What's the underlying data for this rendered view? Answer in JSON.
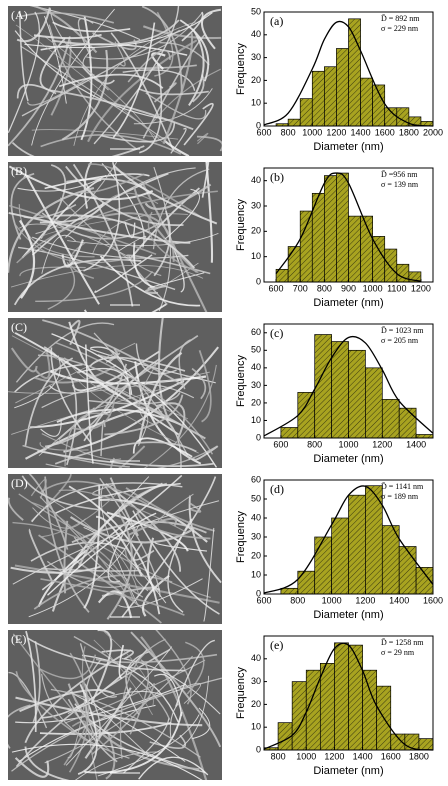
{
  "chart_data": [
    {
      "type": "histogram",
      "image_label": "(A)",
      "label": "(a)",
      "xlabel": "Diameter (nm)",
      "ylabel": "Frequency",
      "color": "#a8a320",
      "annotations": [
        "D̄ = 892 nm",
        "σ = 229 nm"
      ],
      "bins": [
        700,
        800,
        900,
        1000,
        1100,
        1200,
        1300,
        1400,
        1500,
        1600,
        1700,
        1800,
        1900,
        2000
      ],
      "counts": [
        1,
        3,
        12,
        24,
        26,
        34,
        47,
        21,
        18,
        8,
        8,
        4,
        2
      ],
      "curve": {
        "x": [
          600,
          800,
          1000,
          1100,
          1200,
          1300,
          1400,
          1600,
          1800,
          2000
        ],
        "y": [
          0.5,
          5.6,
          25,
          38,
          45.5,
          43.5,
          33,
          9.7,
          1.2,
          0
        ]
      },
      "xlim": [
        600,
        2000
      ],
      "xticks": [
        600,
        800,
        1000,
        1200,
        1400,
        1600,
        1800,
        2000
      ],
      "ylim": [
        0,
        50
      ],
      "yticks": [
        0,
        10,
        20,
        30,
        40,
        50
      ]
    },
    {
      "type": "histogram",
      "image_label": "(B)",
      "label": "(b)",
      "xlabel": "Diameter (nm)",
      "ylabel": "Frequency",
      "color": "#a8a320",
      "annotations": [
        "D̄ =956 nm",
        "σ = 139 nm"
      ],
      "bins": [
        600,
        650,
        700,
        750,
        800,
        850,
        900,
        950,
        1000,
        1050,
        1100,
        1150,
        1200
      ],
      "counts": [
        5,
        14,
        28,
        35,
        42,
        43,
        26,
        26,
        18,
        13,
        7,
        4
      ],
      "curve": {
        "x": [
          600,
          700,
          800,
          850,
          900,
          1000,
          1100,
          1200
        ],
        "y": [
          3.3,
          17,
          39,
          43,
          39,
          17,
          3.3,
          0.3
        ]
      },
      "xlim": [
        550,
        1250
      ],
      "xticks": [
        600,
        700,
        800,
        900,
        1000,
        1100,
        1200
      ],
      "ylim": [
        0,
        45
      ],
      "yticks": [
        0,
        10,
        20,
        30,
        40
      ]
    },
    {
      "type": "histogram",
      "image_label": "(C)",
      "label": "(c)",
      "xlabel": "Diameter (nm)",
      "ylabel": "Frequency",
      "color": "#a8a320",
      "annotations": [
        "D̄ = 1023 nm",
        "σ = 205 nm"
      ],
      "bins": [
        600,
        700,
        800,
        900,
        1000,
        1100,
        1200,
        1300,
        1400,
        1500
      ],
      "counts": [
        6,
        26,
        59,
        55,
        50,
        40,
        22,
        17,
        2
      ],
      "curve": {
        "x": [
          500,
          700,
          800,
          900,
          1000,
          1100,
          1200,
          1300,
          1500
        ],
        "y": [
          1.2,
          12.8,
          27.9,
          45.8,
          57.3,
          54.2,
          38.9,
          21,
          2.7
        ]
      },
      "xlim": [
        500,
        1500
      ],
      "xticks": [
        600,
        800,
        1000,
        1200,
        1400
      ],
      "ylim": [
        0,
        65
      ],
      "yticks": [
        0,
        10,
        20,
        30,
        40,
        50,
        60
      ]
    },
    {
      "type": "histogram",
      "image_label": "(D)",
      "label": "(d)",
      "xlabel": "Diameter (nm)",
      "ylabel": "Frequency",
      "color": "#a8a320",
      "annotations": [
        "D̄ = 1141 nm",
        "σ = 189 nm"
      ],
      "bins": [
        700,
        800,
        900,
        1000,
        1100,
        1200,
        1300,
        1400,
        1500,
        1600
      ],
      "counts": [
        3,
        12,
        30,
        40,
        52,
        57,
        36,
        25,
        14
      ],
      "curve": {
        "x": [
          600,
          800,
          1000,
          1100,
          1200,
          1300,
          1400,
          1600
        ],
        "y": [
          0.5,
          7.7,
          36.4,
          52,
          56.7,
          46.7,
          29,
          5
        ]
      },
      "xlim": [
        600,
        1600
      ],
      "xticks": [
        600,
        800,
        1000,
        1200,
        1400,
        1600
      ],
      "ylim": [
        0,
        60
      ],
      "yticks": [
        0,
        10,
        20,
        30,
        40,
        50,
        60
      ]
    },
    {
      "type": "histogram",
      "image_label": "(E)",
      "label": "(e)",
      "xlabel": "Diameter (nm)",
      "ylabel": "Frequency",
      "color": "#a8a320",
      "annotations": [
        "D̄ = 1258 nm",
        "σ = 29 nm"
      ],
      "bins": [
        700,
        800,
        900,
        1000,
        1100,
        1200,
        1300,
        1400,
        1500,
        1600,
        1700,
        1800,
        1900
      ],
      "counts": [
        1,
        12,
        30,
        35,
        38,
        47,
        46,
        35,
        28,
        7,
        7,
        5
      ],
      "curve": {
        "x": [
          700,
          900,
          1000,
          1100,
          1200,
          1300,
          1400,
          1500,
          1700,
          1900
        ],
        "y": [
          0.4,
          6.4,
          16.6,
          31.7,
          44.5,
          46,
          34.8,
          19.3,
          2.4,
          0
        ]
      },
      "xlim": [
        700,
        1900
      ],
      "xticks": [
        800,
        1000,
        1200,
        1400,
        1600,
        1800
      ],
      "ylim": [
        0,
        50
      ],
      "yticks": [
        0,
        10,
        20,
        30,
        40
      ]
    }
  ]
}
